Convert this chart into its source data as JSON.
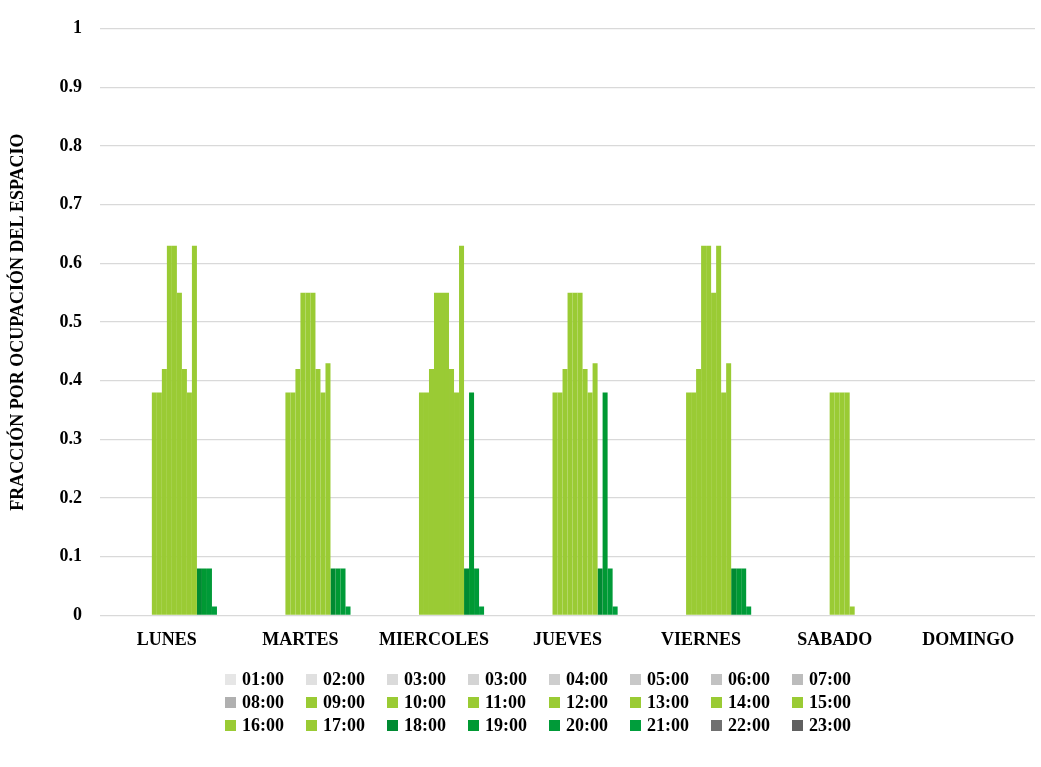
{
  "chart_data": {
    "type": "bar",
    "ylabel": "FRACCIÓN POR OCUPACIÓN DEL ESPACIO",
    "categories": [
      "LUNES",
      "MARTES",
      "MIERCOLES",
      "JUEVES",
      "VIERNES",
      "SABADO",
      "DOMINGO"
    ],
    "ylim": [
      0,
      1
    ],
    "yticks": [
      0,
      0.1,
      0.2,
      0.3,
      0.4,
      0.5,
      0.6,
      0.7,
      0.8,
      0.9,
      1
    ],
    "grid": "y",
    "legend": "bottom",
    "series": [
      {
        "name": "01:00",
        "color": "#e6e6e6",
        "values": [
          0,
          0,
          0,
          0,
          0,
          0,
          0
        ]
      },
      {
        "name": "02:00",
        "color": "#e0e0e0",
        "values": [
          0,
          0,
          0,
          0,
          0,
          0,
          0
        ]
      },
      {
        "name": "03:00",
        "color": "#dadada",
        "values": [
          0,
          0,
          0,
          0,
          0,
          0,
          0
        ]
      },
      {
        "name": "03:00",
        "color": "#d4d4d4",
        "values": [
          0,
          0,
          0,
          0,
          0,
          0,
          0
        ]
      },
      {
        "name": "04:00",
        "color": "#cecece",
        "values": [
          0,
          0,
          0,
          0,
          0,
          0,
          0
        ]
      },
      {
        "name": "05:00",
        "color": "#c8c8c8",
        "values": [
          0,
          0,
          0,
          0,
          0,
          0,
          0
        ]
      },
      {
        "name": "06:00",
        "color": "#c2c2c2",
        "values": [
          0,
          0,
          0,
          0,
          0,
          0,
          0
        ]
      },
      {
        "name": "07:00",
        "color": "#bcbcbc",
        "values": [
          0,
          0,
          0,
          0,
          0,
          0,
          0
        ]
      },
      {
        "name": "08:00",
        "color": "#b0b0b0",
        "values": [
          0,
          0,
          0,
          0,
          0,
          0,
          0
        ]
      },
      {
        "name": "09:00",
        "color": "#9acb34",
        "values": [
          0.38,
          0.38,
          0.38,
          0.38,
          0.38,
          0,
          0
        ]
      },
      {
        "name": "10:00",
        "color": "#9acb34",
        "values": [
          0.38,
          0.38,
          0.38,
          0.38,
          0.38,
          0,
          0
        ]
      },
      {
        "name": "11:00",
        "color": "#9acb34",
        "values": [
          0.42,
          0.42,
          0.42,
          0.42,
          0.42,
          0.38,
          0
        ]
      },
      {
        "name": "12:00",
        "color": "#9acb34",
        "values": [
          0.63,
          0.55,
          0.55,
          0.55,
          0.63,
          0.38,
          0
        ]
      },
      {
        "name": "13:00",
        "color": "#9acb34",
        "values": [
          0.63,
          0.55,
          0.55,
          0.55,
          0.63,
          0.38,
          0
        ]
      },
      {
        "name": "14:00",
        "color": "#9acb34",
        "values": [
          0.55,
          0.55,
          0.55,
          0.55,
          0.55,
          0.38,
          0
        ]
      },
      {
        "name": "15:00",
        "color": "#9acb34",
        "values": [
          0.42,
          0.42,
          0.42,
          0.42,
          0.63,
          0.015,
          0
        ]
      },
      {
        "name": "16:00",
        "color": "#9acb34",
        "values": [
          0.38,
          0.38,
          0.38,
          0.38,
          0.38,
          0,
          0
        ]
      },
      {
        "name": "17:00",
        "color": "#9acb34",
        "values": [
          0.63,
          0.43,
          0.63,
          0.43,
          0.43,
          0,
          0
        ]
      },
      {
        "name": "18:00",
        "color": "#008a32",
        "values": [
          0.08,
          0.08,
          0.08,
          0.08,
          0.08,
          0,
          0
        ]
      },
      {
        "name": "19:00",
        "color": "#009933",
        "values": [
          0.08,
          0.08,
          0.38,
          0.38,
          0.08,
          0,
          0
        ]
      },
      {
        "name": "20:00",
        "color": "#009a38",
        "values": [
          0.08,
          0.08,
          0.08,
          0.08,
          0.08,
          0,
          0
        ]
      },
      {
        "name": "21:00",
        "color": "#009e3c",
        "values": [
          0.015,
          0.015,
          0.015,
          0.015,
          0.015,
          0,
          0
        ]
      },
      {
        "name": "22:00",
        "color": "#707070",
        "values": [
          0,
          0,
          0,
          0,
          0,
          0,
          0
        ]
      },
      {
        "name": "23:00",
        "color": "#606060",
        "values": [
          0,
          0,
          0,
          0,
          0,
          0,
          0
        ]
      }
    ]
  }
}
